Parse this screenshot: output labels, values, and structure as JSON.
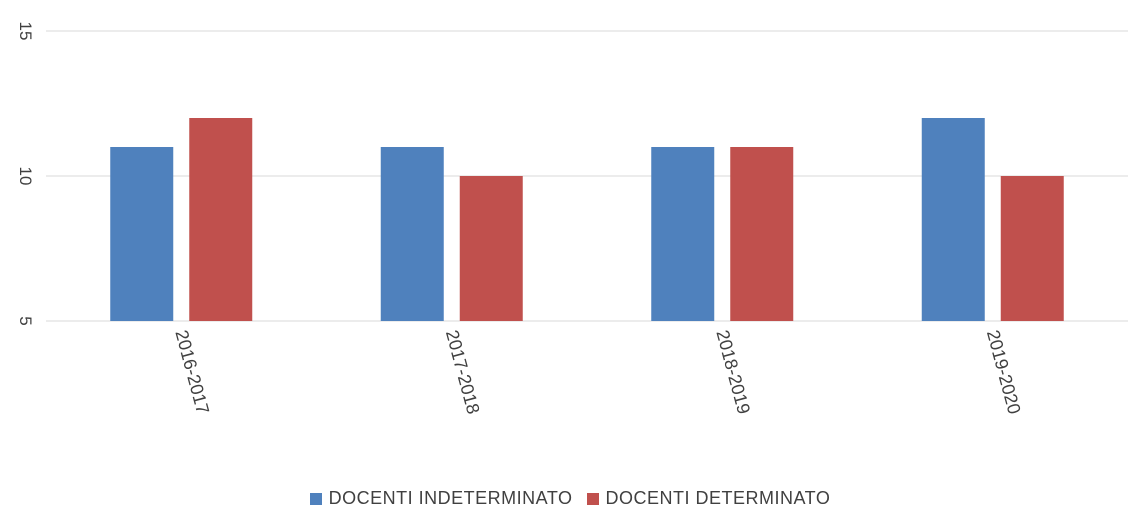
{
  "chart_data": {
    "type": "bar",
    "categories": [
      "2016-2017",
      "2017-2018",
      "2018-2019",
      "2019-2020"
    ],
    "series": [
      {
        "name": "DOCENTI INDETERMINATO",
        "color": "#4F81BD",
        "values": [
          11,
          11,
          11,
          12
        ]
      },
      {
        "name": "DOCENTI DETERMINATO",
        "color": "#C0504D",
        "values": [
          12,
          10,
          11,
          10
        ]
      }
    ],
    "ylim": [
      5,
      15
    ],
    "yticks": [
      "5",
      "10",
      "15"
    ],
    "grid": true,
    "legend_position": "bottom",
    "title": "",
    "xlabel": "",
    "ylabel": ""
  }
}
